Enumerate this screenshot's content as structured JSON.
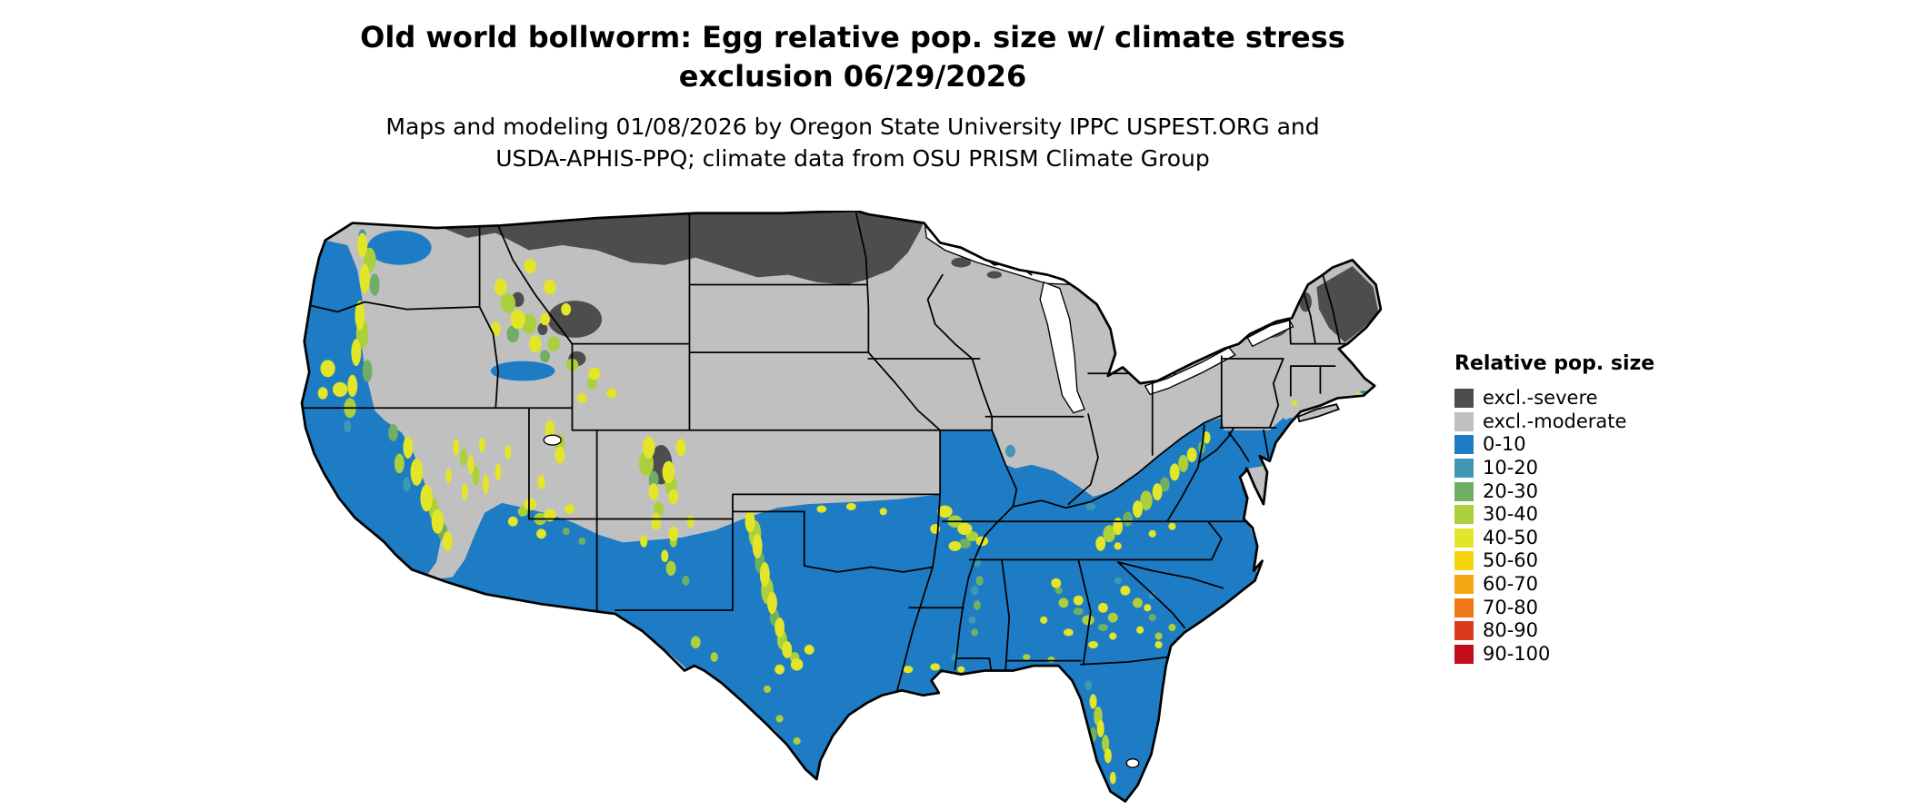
{
  "title": {
    "line1": "Old world bollworm: Egg relative pop. size w/ climate stress",
    "line2": "exclusion 06/29/2026"
  },
  "subtitle": {
    "line1": "Ma​ps and modeling 01/08/2026 by Oregon State University IPPC USPEST.ORG and",
    "line2": "USDA-APHIS-PPQ; climate data from OSU PRISM Climate Group"
  },
  "legend": {
    "title": "Relative pop. size",
    "items": [
      {
        "label": "excl.-severe",
        "color": "#4d4d4d"
      },
      {
        "label": "excl.-moderate",
        "color": "#c0c0c0"
      },
      {
        "label": "0-10",
        "color": "#1d7cc4"
      },
      {
        "label": "10-20",
        "color": "#4097b2"
      },
      {
        "label": "20-30",
        "color": "#6fae63"
      },
      {
        "label": "30-40",
        "color": "#abd03b"
      },
      {
        "label": "40-50",
        "color": "#e3e529"
      },
      {
        "label": "50-60",
        "color": "#f8d30e"
      },
      {
        "label": "60-70",
        "color": "#f6a813"
      },
      {
        "label": "70-80",
        "color": "#ee7818"
      },
      {
        "label": "80-90",
        "color": "#dc3a1c"
      },
      {
        "label": "90-100",
        "color": "#c30c1c"
      }
    ]
  }
}
